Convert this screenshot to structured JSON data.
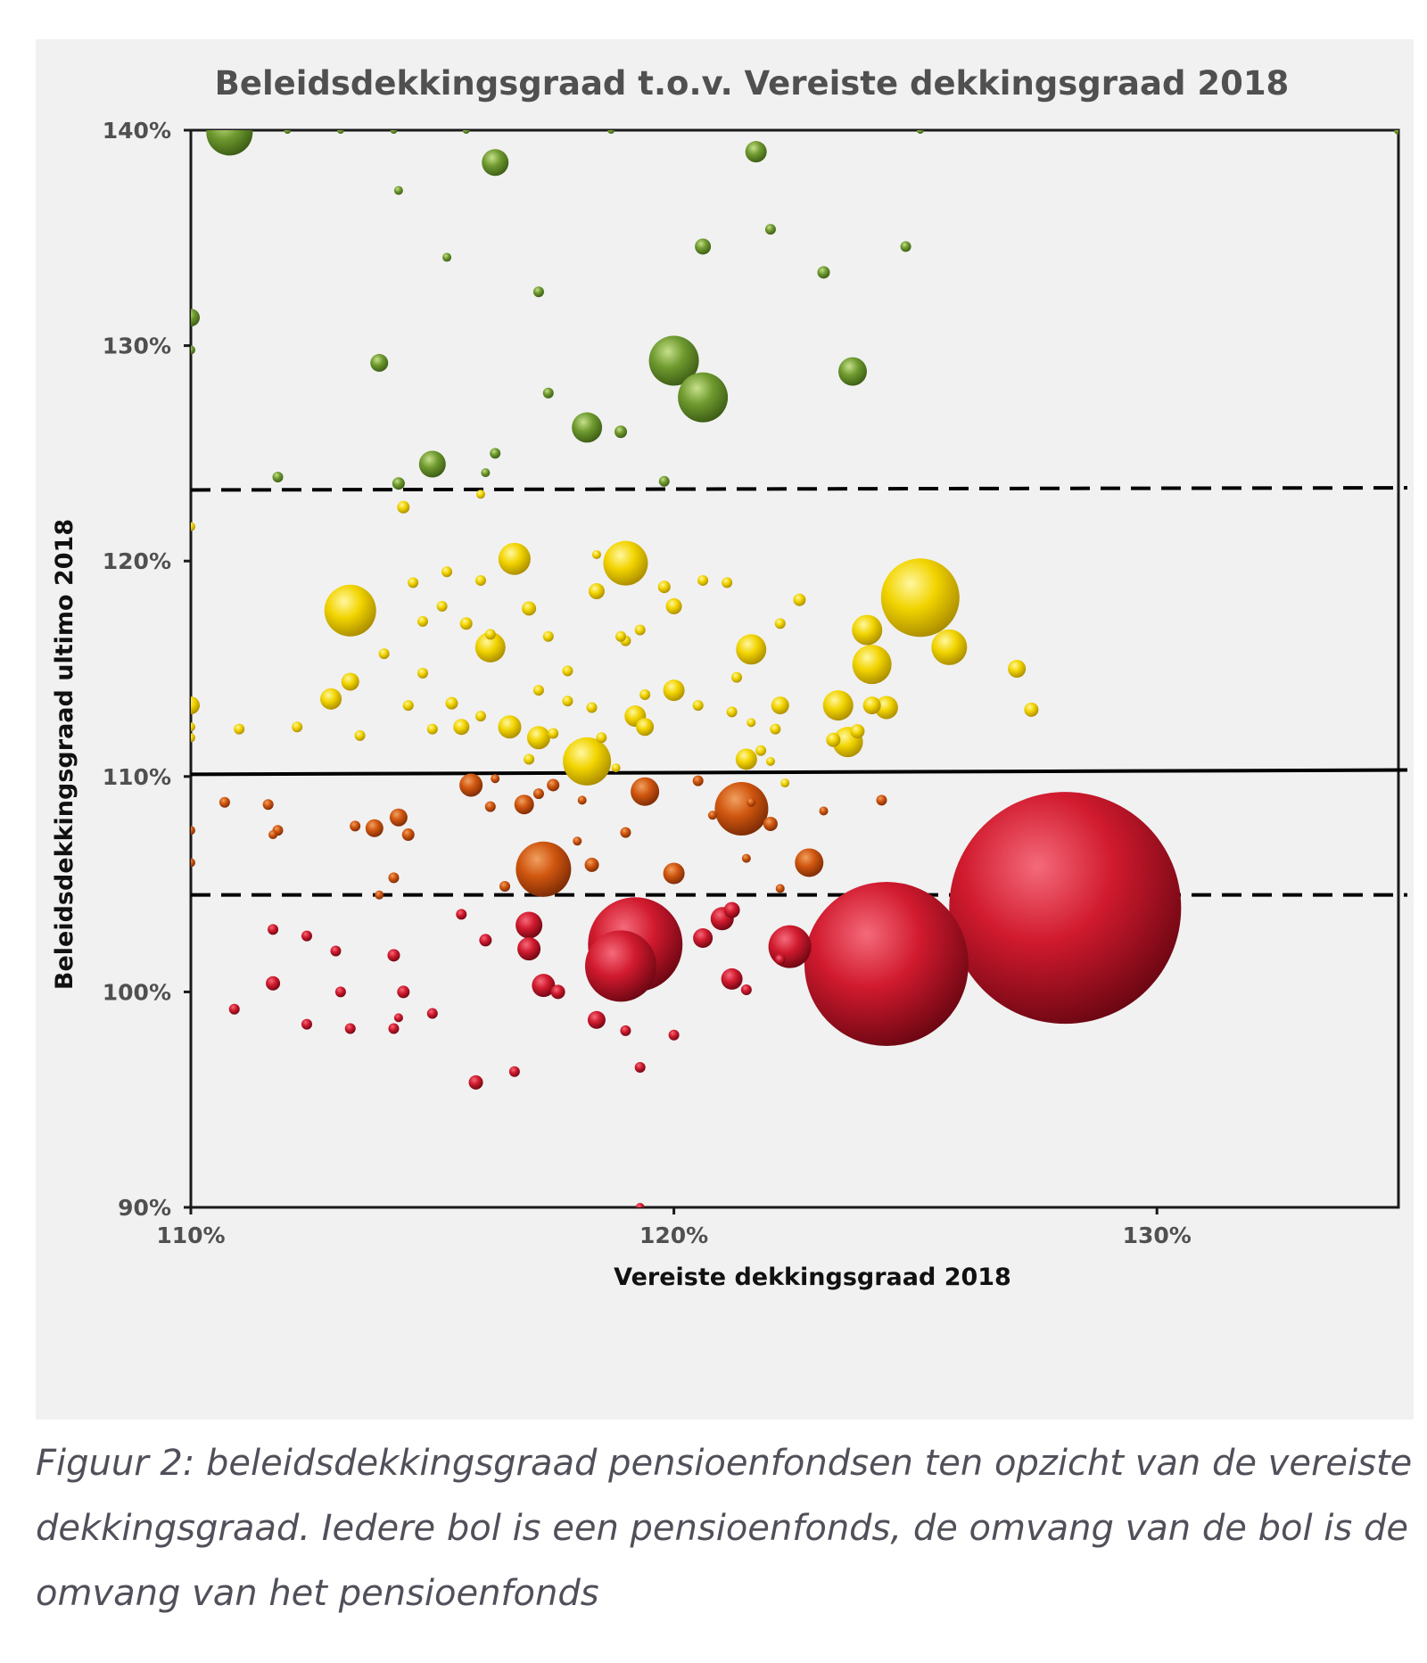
{
  "chart_data": {
    "type": "scatter",
    "title": "Beleidsdekkingsgraad t.o.v. Vereiste dekkingsgraad 2018",
    "xlabel": "Vereiste dekkingsgraad 2018",
    "ylabel": "Beleidsdekkingsgraad ultimo 2018",
    "xlim": [
      110,
      135
    ],
    "ylim": [
      90,
      140
    ],
    "x_ticks": [
      110,
      120,
      130
    ],
    "x_tick_labels": [
      "110%",
      "120%",
      "130%"
    ],
    "y_ticks": [
      90,
      100,
      110,
      120,
      130,
      140
    ],
    "y_tick_labels": [
      "90%",
      "100%",
      "110%",
      "120%",
      "130%",
      "140%"
    ],
    "grid": false,
    "bubble_size_meaning": "omvang pensioenfonds",
    "reference_lines": [
      {
        "style": "dashed",
        "y": [
          123.3,
          123.4
        ]
      },
      {
        "style": "solid",
        "y": [
          110.1,
          110.3
        ]
      },
      {
        "style": "dashed",
        "y": [
          104.5,
          104.5
        ]
      }
    ],
    "colors": {
      "green": "#6f9a2f",
      "yellow": "#f2d400",
      "orange": "#d0560f",
      "red": "#d11a2e"
    },
    "points": [
      {
        "x": 110.8,
        "y": 139.9,
        "r": 26,
        "c": "green"
      },
      {
        "x": 116.3,
        "y": 138.5,
        "r": 15,
        "c": "green"
      },
      {
        "x": 121.7,
        "y": 139.0,
        "r": 12,
        "c": "green"
      },
      {
        "x": 114.3,
        "y": 137.2,
        "r": 5,
        "c": "green"
      },
      {
        "x": 120.6,
        "y": 134.6,
        "r": 9,
        "c": "green"
      },
      {
        "x": 122.0,
        "y": 135.4,
        "r": 6,
        "c": "green"
      },
      {
        "x": 123.1,
        "y": 133.4,
        "r": 7,
        "c": "green"
      },
      {
        "x": 124.8,
        "y": 134.6,
        "r": 6,
        "c": "green"
      },
      {
        "x": 115.3,
        "y": 134.1,
        "r": 5,
        "c": "green"
      },
      {
        "x": 117.2,
        "y": 132.5,
        "r": 6,
        "c": "green"
      },
      {
        "x": 110.0,
        "y": 131.3,
        "r": 10,
        "c": "green"
      },
      {
        "x": 110.0,
        "y": 129.8,
        "r": 5,
        "c": "green"
      },
      {
        "x": 113.9,
        "y": 129.2,
        "r": 10,
        "c": "green"
      },
      {
        "x": 120.0,
        "y": 129.3,
        "r": 28,
        "c": "green"
      },
      {
        "x": 120.6,
        "y": 127.6,
        "r": 28,
        "c": "green"
      },
      {
        "x": 123.7,
        "y": 128.8,
        "r": 16,
        "c": "green"
      },
      {
        "x": 117.4,
        "y": 127.8,
        "r": 6,
        "c": "green"
      },
      {
        "x": 118.2,
        "y": 126.2,
        "r": 17,
        "c": "green"
      },
      {
        "x": 118.9,
        "y": 126.0,
        "r": 7,
        "c": "green"
      },
      {
        "x": 115.0,
        "y": 124.5,
        "r": 15,
        "c": "green"
      },
      {
        "x": 116.3,
        "y": 125.0,
        "r": 6,
        "c": "green"
      },
      {
        "x": 111.8,
        "y": 123.9,
        "r": 6,
        "c": "green"
      },
      {
        "x": 114.3,
        "y": 123.6,
        "r": 7,
        "c": "green"
      },
      {
        "x": 116.1,
        "y": 124.1,
        "r": 5,
        "c": "green"
      },
      {
        "x": 119.8,
        "y": 123.7,
        "r": 6,
        "c": "green"
      },
      {
        "x": 112.0,
        "y": 140.0,
        "r": 4,
        "c": "green"
      },
      {
        "x": 114.2,
        "y": 140.0,
        "r": 4,
        "c": "green"
      },
      {
        "x": 115.7,
        "y": 140.0,
        "r": 4,
        "c": "green"
      },
      {
        "x": 118.7,
        "y": 140.0,
        "r": 4,
        "c": "green"
      },
      {
        "x": 125.1,
        "y": 140.0,
        "r": 4,
        "c": "green"
      },
      {
        "x": 135.0,
        "y": 140.0,
        "r": 5,
        "c": "green"
      },
      {
        "x": 113.1,
        "y": 140.0,
        "r": 4,
        "c": "green"
      },
      {
        "x": 114.4,
        "y": 122.5,
        "r": 7,
        "c": "yellow"
      },
      {
        "x": 116.0,
        "y": 123.1,
        "r": 5,
        "c": "yellow"
      },
      {
        "x": 110.0,
        "y": 121.6,
        "r": 5,
        "c": "yellow"
      },
      {
        "x": 116.7,
        "y": 120.1,
        "r": 18,
        "c": "yellow"
      },
      {
        "x": 119.0,
        "y": 119.9,
        "r": 25,
        "c": "yellow"
      },
      {
        "x": 113.3,
        "y": 117.7,
        "r": 29,
        "c": "yellow"
      },
      {
        "x": 125.1,
        "y": 118.3,
        "r": 44,
        "c": "yellow"
      },
      {
        "x": 118.4,
        "y": 120.3,
        "r": 5,
        "c": "yellow"
      },
      {
        "x": 118.4,
        "y": 118.6,
        "r": 9,
        "c": "yellow"
      },
      {
        "x": 117.0,
        "y": 117.8,
        "r": 8,
        "c": "yellow"
      },
      {
        "x": 119.8,
        "y": 118.8,
        "r": 7,
        "c": "yellow"
      },
      {
        "x": 120.0,
        "y": 117.9,
        "r": 9,
        "c": "yellow"
      },
      {
        "x": 120.6,
        "y": 119.1,
        "r": 6,
        "c": "yellow"
      },
      {
        "x": 121.1,
        "y": 119.0,
        "r": 6,
        "c": "yellow"
      },
      {
        "x": 122.6,
        "y": 118.2,
        "r": 7,
        "c": "yellow"
      },
      {
        "x": 116.2,
        "y": 116.0,
        "r": 17,
        "c": "yellow"
      },
      {
        "x": 121.6,
        "y": 115.9,
        "r": 17,
        "c": "yellow"
      },
      {
        "x": 124.0,
        "y": 116.8,
        "r": 17,
        "c": "yellow"
      },
      {
        "x": 125.7,
        "y": 116.0,
        "r": 20,
        "c": "yellow"
      },
      {
        "x": 124.1,
        "y": 115.2,
        "r": 22,
        "c": "yellow"
      },
      {
        "x": 127.1,
        "y": 115.0,
        "r": 10,
        "c": "yellow"
      },
      {
        "x": 115.7,
        "y": 117.1,
        "r": 7,
        "c": "yellow"
      },
      {
        "x": 114.8,
        "y": 117.2,
        "r": 6,
        "c": "yellow"
      },
      {
        "x": 115.2,
        "y": 117.9,
        "r": 6,
        "c": "yellow"
      },
      {
        "x": 114.6,
        "y": 119.0,
        "r": 6,
        "c": "yellow"
      },
      {
        "x": 116.0,
        "y": 119.1,
        "r": 6,
        "c": "yellow"
      },
      {
        "x": 115.3,
        "y": 119.5,
        "r": 6,
        "c": "yellow"
      },
      {
        "x": 113.3,
        "y": 114.4,
        "r": 10,
        "c": "yellow"
      },
      {
        "x": 112.9,
        "y": 113.6,
        "r": 12,
        "c": "yellow"
      },
      {
        "x": 110.0,
        "y": 113.3,
        "r": 10,
        "c": "yellow"
      },
      {
        "x": 111.0,
        "y": 112.2,
        "r": 6,
        "c": "yellow"
      },
      {
        "x": 112.2,
        "y": 112.3,
        "r": 6,
        "c": "yellow"
      },
      {
        "x": 113.5,
        "y": 111.9,
        "r": 6,
        "c": "yellow"
      },
      {
        "x": 110.0,
        "y": 111.8,
        "r": 5,
        "c": "yellow"
      },
      {
        "x": 110.0,
        "y": 112.3,
        "r": 5,
        "c": "yellow"
      },
      {
        "x": 114.8,
        "y": 114.8,
        "r": 6,
        "c": "yellow"
      },
      {
        "x": 115.4,
        "y": 113.4,
        "r": 7,
        "c": "yellow"
      },
      {
        "x": 115.0,
        "y": 112.2,
        "r": 6,
        "c": "yellow"
      },
      {
        "x": 115.6,
        "y": 112.3,
        "r": 9,
        "c": "yellow"
      },
      {
        "x": 116.6,
        "y": 112.3,
        "r": 13,
        "c": "yellow"
      },
      {
        "x": 117.2,
        "y": 111.8,
        "r": 13,
        "c": "yellow"
      },
      {
        "x": 118.2,
        "y": 110.7,
        "r": 27,
        "c": "yellow"
      },
      {
        "x": 117.5,
        "y": 112.0,
        "r": 6,
        "c": "yellow"
      },
      {
        "x": 116.0,
        "y": 112.8,
        "r": 6,
        "c": "yellow"
      },
      {
        "x": 117.2,
        "y": 114.0,
        "r": 6,
        "c": "yellow"
      },
      {
        "x": 118.3,
        "y": 113.2,
        "r": 6,
        "c": "yellow"
      },
      {
        "x": 119.2,
        "y": 112.8,
        "r": 12,
        "c": "yellow"
      },
      {
        "x": 119.4,
        "y": 112.3,
        "r": 10,
        "c": "yellow"
      },
      {
        "x": 120.0,
        "y": 114.0,
        "r": 12,
        "c": "yellow"
      },
      {
        "x": 120.5,
        "y": 113.3,
        "r": 6,
        "c": "yellow"
      },
      {
        "x": 119.4,
        "y": 113.8,
        "r": 6,
        "c": "yellow"
      },
      {
        "x": 121.3,
        "y": 114.6,
        "r": 6,
        "c": "yellow"
      },
      {
        "x": 121.2,
        "y": 113.0,
        "r": 6,
        "c": "yellow"
      },
      {
        "x": 122.2,
        "y": 113.3,
        "r": 10,
        "c": "yellow"
      },
      {
        "x": 123.4,
        "y": 113.3,
        "r": 17,
        "c": "yellow"
      },
      {
        "x": 124.1,
        "y": 113.3,
        "r": 10,
        "c": "yellow"
      },
      {
        "x": 124.4,
        "y": 113.2,
        "r": 13,
        "c": "yellow"
      },
      {
        "x": 127.4,
        "y": 113.1,
        "r": 8,
        "c": "yellow"
      },
      {
        "x": 123.6,
        "y": 111.6,
        "r": 17,
        "c": "yellow"
      },
      {
        "x": 123.3,
        "y": 111.7,
        "r": 8,
        "c": "yellow"
      },
      {
        "x": 123.8,
        "y": 112.1,
        "r": 8,
        "c": "yellow"
      },
      {
        "x": 122.1,
        "y": 112.2,
        "r": 6,
        "c": "yellow"
      },
      {
        "x": 121.5,
        "y": 110.8,
        "r": 12,
        "c": "yellow"
      },
      {
        "x": 121.8,
        "y": 111.2,
        "r": 6,
        "c": "yellow"
      },
      {
        "x": 122.0,
        "y": 110.7,
        "r": 5,
        "c": "yellow"
      },
      {
        "x": 121.6,
        "y": 112.5,
        "r": 5,
        "c": "yellow"
      },
      {
        "x": 114.0,
        "y": 115.7,
        "r": 6,
        "c": "yellow"
      },
      {
        "x": 114.5,
        "y": 113.3,
        "r": 6,
        "c": "yellow"
      },
      {
        "x": 117.8,
        "y": 114.9,
        "r": 6,
        "c": "yellow"
      },
      {
        "x": 117.8,
        "y": 113.5,
        "r": 6,
        "c": "yellow"
      },
      {
        "x": 119.0,
        "y": 116.3,
        "r": 6,
        "c": "yellow"
      },
      {
        "x": 119.3,
        "y": 116.8,
        "r": 6,
        "c": "yellow"
      },
      {
        "x": 118.9,
        "y": 116.5,
        "r": 6,
        "c": "yellow"
      },
      {
        "x": 117.4,
        "y": 116.5,
        "r": 6,
        "c": "yellow"
      },
      {
        "x": 122.2,
        "y": 117.1,
        "r": 6,
        "c": "yellow"
      },
      {
        "x": 116.2,
        "y": 116.6,
        "r": 6,
        "c": "yellow"
      },
      {
        "x": 117.0,
        "y": 110.8,
        "r": 6,
        "c": "yellow"
      },
      {
        "x": 118.5,
        "y": 111.8,
        "r": 6,
        "c": "yellow"
      },
      {
        "x": 122.3,
        "y": 109.7,
        "r": 5,
        "c": "yellow"
      },
      {
        "x": 118.8,
        "y": 110.4,
        "r": 5,
        "c": "yellow"
      },
      {
        "x": 121.4,
        "y": 108.5,
        "r": 30,
        "c": "orange"
      },
      {
        "x": 117.3,
        "y": 105.7,
        "r": 31,
        "c": "orange"
      },
      {
        "x": 119.4,
        "y": 109.3,
        "r": 16,
        "c": "orange"
      },
      {
        "x": 116.9,
        "y": 108.7,
        "r": 11,
        "c": "orange"
      },
      {
        "x": 115.8,
        "y": 109.6,
        "r": 13,
        "c": "orange"
      },
      {
        "x": 117.5,
        "y": 109.6,
        "r": 7,
        "c": "orange"
      },
      {
        "x": 122.8,
        "y": 106.0,
        "r": 16,
        "c": "orange"
      },
      {
        "x": 120.0,
        "y": 105.5,
        "r": 12,
        "c": "orange"
      },
      {
        "x": 118.3,
        "y": 105.9,
        "r": 8,
        "c": "orange"
      },
      {
        "x": 114.3,
        "y": 108.1,
        "r": 10,
        "c": "orange"
      },
      {
        "x": 113.8,
        "y": 107.6,
        "r": 10,
        "c": "orange"
      },
      {
        "x": 113.4,
        "y": 107.7,
        "r": 6,
        "c": "orange"
      },
      {
        "x": 114.5,
        "y": 107.3,
        "r": 7,
        "c": "orange"
      },
      {
        "x": 111.8,
        "y": 107.5,
        "r": 6,
        "c": "orange"
      },
      {
        "x": 111.7,
        "y": 107.3,
        "r": 5,
        "c": "orange"
      },
      {
        "x": 110.7,
        "y": 108.8,
        "r": 6,
        "c": "orange"
      },
      {
        "x": 111.6,
        "y": 108.7,
        "r": 6,
        "c": "orange"
      },
      {
        "x": 110.0,
        "y": 107.5,
        "r": 5,
        "c": "orange"
      },
      {
        "x": 116.2,
        "y": 108.6,
        "r": 6,
        "c": "orange"
      },
      {
        "x": 116.3,
        "y": 109.9,
        "r": 5,
        "c": "orange"
      },
      {
        "x": 117.2,
        "y": 109.2,
        "r": 6,
        "c": "orange"
      },
      {
        "x": 118.1,
        "y": 108.9,
        "r": 5,
        "c": "orange"
      },
      {
        "x": 120.5,
        "y": 109.8,
        "r": 6,
        "c": "orange"
      },
      {
        "x": 122.0,
        "y": 107.8,
        "r": 8,
        "c": "orange"
      },
      {
        "x": 123.1,
        "y": 108.4,
        "r": 5,
        "c": "orange"
      },
      {
        "x": 124.3,
        "y": 108.9,
        "r": 6,
        "c": "orange"
      },
      {
        "x": 119.0,
        "y": 107.4,
        "r": 6,
        "c": "orange"
      },
      {
        "x": 118.0,
        "y": 107.0,
        "r": 5,
        "c": "orange"
      },
      {
        "x": 116.5,
        "y": 104.9,
        "r": 6,
        "c": "orange"
      },
      {
        "x": 114.2,
        "y": 105.3,
        "r": 6,
        "c": "orange"
      },
      {
        "x": 110.0,
        "y": 106.0,
        "r": 5,
        "c": "orange"
      },
      {
        "x": 121.5,
        "y": 106.2,
        "r": 5,
        "c": "orange"
      },
      {
        "x": 122.2,
        "y": 104.8,
        "r": 5,
        "c": "orange"
      },
      {
        "x": 120.8,
        "y": 108.2,
        "r": 5,
        "c": "orange"
      },
      {
        "x": 121.6,
        "y": 108.8,
        "r": 5,
        "c": "orange"
      },
      {
        "x": 113.9,
        "y": 104.5,
        "r": 5,
        "c": "orange"
      },
      {
        "x": 128.1,
        "y": 103.9,
        "r": 130,
        "c": "red"
      },
      {
        "x": 124.4,
        "y": 101.3,
        "r": 92,
        "c": "red"
      },
      {
        "x": 119.2,
        "y": 102.2,
        "r": 53,
        "c": "red"
      },
      {
        "x": 118.9,
        "y": 101.2,
        "r": 40,
        "c": "red"
      },
      {
        "x": 122.4,
        "y": 102.1,
        "r": 24,
        "c": "red"
      },
      {
        "x": 117.0,
        "y": 103.1,
        "r": 15,
        "c": "red"
      },
      {
        "x": 117.0,
        "y": 102.0,
        "r": 13,
        "c": "red"
      },
      {
        "x": 117.3,
        "y": 100.3,
        "r": 13,
        "c": "red"
      },
      {
        "x": 121.0,
        "y": 103.4,
        "r": 13,
        "c": "red"
      },
      {
        "x": 121.2,
        "y": 100.6,
        "r": 12,
        "c": "red"
      },
      {
        "x": 120.6,
        "y": 102.5,
        "r": 11,
        "c": "red"
      },
      {
        "x": 121.2,
        "y": 103.8,
        "r": 9,
        "c": "red"
      },
      {
        "x": 118.4,
        "y": 98.7,
        "r": 10,
        "c": "red"
      },
      {
        "x": 117.6,
        "y": 100.0,
        "r": 8,
        "c": "red"
      },
      {
        "x": 115.9,
        "y": 95.8,
        "r": 8,
        "c": "red"
      },
      {
        "x": 116.1,
        "y": 102.4,
        "r": 7,
        "c": "red"
      },
      {
        "x": 115.6,
        "y": 103.6,
        "r": 6,
        "c": "red"
      },
      {
        "x": 116.7,
        "y": 96.3,
        "r": 6,
        "c": "red"
      },
      {
        "x": 119.3,
        "y": 96.5,
        "r": 6,
        "c": "red"
      },
      {
        "x": 119.0,
        "y": 98.2,
        "r": 6,
        "c": "red"
      },
      {
        "x": 120.0,
        "y": 98.0,
        "r": 6,
        "c": "red"
      },
      {
        "x": 121.5,
        "y": 100.1,
        "r": 6,
        "c": "red"
      },
      {
        "x": 122.2,
        "y": 101.5,
        "r": 6,
        "c": "red"
      },
      {
        "x": 111.7,
        "y": 100.4,
        "r": 8,
        "c": "red"
      },
      {
        "x": 111.7,
        "y": 102.9,
        "r": 6,
        "c": "red"
      },
      {
        "x": 112.4,
        "y": 102.6,
        "r": 6,
        "c": "red"
      },
      {
        "x": 113.0,
        "y": 101.9,
        "r": 6,
        "c": "red"
      },
      {
        "x": 114.2,
        "y": 101.7,
        "r": 7,
        "c": "red"
      },
      {
        "x": 114.4,
        "y": 100.0,
        "r": 7,
        "c": "red"
      },
      {
        "x": 113.1,
        "y": 100.0,
        "r": 6,
        "c": "red"
      },
      {
        "x": 110.9,
        "y": 99.2,
        "r": 6,
        "c": "red"
      },
      {
        "x": 112.4,
        "y": 98.5,
        "r": 6,
        "c": "red"
      },
      {
        "x": 113.3,
        "y": 98.3,
        "r": 6,
        "c": "red"
      },
      {
        "x": 114.2,
        "y": 98.3,
        "r": 6,
        "c": "red"
      },
      {
        "x": 114.3,
        "y": 98.8,
        "r": 5,
        "c": "red"
      },
      {
        "x": 115.0,
        "y": 99.0,
        "r": 6,
        "c": "red"
      },
      {
        "x": 119.3,
        "y": 90.0,
        "r": 5,
        "c": "red"
      }
    ]
  },
  "caption": "Figuur 2: beleidsdekkingsgraad pensioenfondsen ten opzicht van de vereiste dekkingsgraad. Iedere bol is een pensioenfonds, de omvang van de bol is de omvang van het pensioenfonds"
}
